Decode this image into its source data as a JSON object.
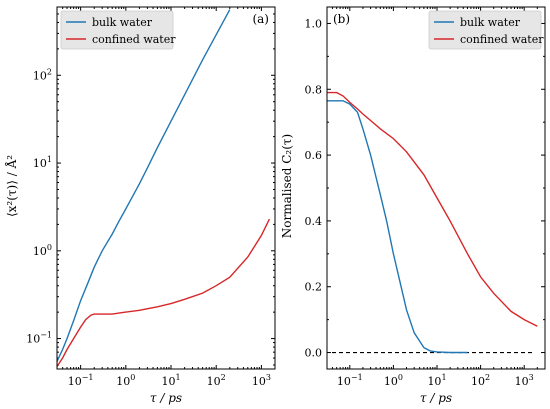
{
  "chart_data": [
    {
      "type": "line",
      "panel_label": "(a)",
      "xlabel": "τ / ps",
      "ylabel": "⟨x²(τ)⟩ / Å²",
      "xscale": "log",
      "yscale": "log",
      "xlim": [
        0.03,
        2000
      ],
      "ylim": [
        0.045,
        600
      ],
      "x_ticks": [
        {
          "value": 0.1,
          "base": "10",
          "exp": "−1"
        },
        {
          "value": 1,
          "base": "10",
          "exp": "0"
        },
        {
          "value": 10,
          "base": "10",
          "exp": "1"
        },
        {
          "value": 100,
          "base": "10",
          "exp": "2"
        },
        {
          "value": 1000,
          "base": "10",
          "exp": "3"
        }
      ],
      "y_ticks": [
        {
          "value": 0.1,
          "base": "10",
          "exp": "−1"
        },
        {
          "value": 1,
          "base": "10",
          "exp": "0"
        },
        {
          "value": 10,
          "base": "10",
          "exp": "1"
        },
        {
          "value": 100,
          "base": "10",
          "exp": "2"
        }
      ],
      "legend_position": "top-left",
      "series": [
        {
          "name": "bulk water",
          "color": "#1f77b4",
          "x": [
            0.03,
            0.04,
            0.05,
            0.07,
            0.1,
            0.15,
            0.2,
            0.3,
            0.5,
            0.7,
            1,
            2,
            3,
            5,
            10,
            20,
            50,
            100,
            200
          ],
          "y": [
            0.055,
            0.075,
            0.1,
            0.16,
            0.27,
            0.45,
            0.65,
            1.0,
            1.55,
            2.15,
            3.0,
            5.8,
            8.8,
            15,
            30,
            60,
            150,
            290,
            560
          ]
        },
        {
          "name": "confined water",
          "color": "#d62728",
          "x": [
            0.03,
            0.04,
            0.05,
            0.07,
            0.1,
            0.13,
            0.17,
            0.2,
            0.3,
            0.5,
            1,
            2,
            5,
            10,
            20,
            50,
            100,
            200,
            500,
            1000,
            1500
          ],
          "y": [
            0.048,
            0.06,
            0.075,
            0.1,
            0.135,
            0.165,
            0.185,
            0.19,
            0.19,
            0.19,
            0.2,
            0.21,
            0.23,
            0.25,
            0.28,
            0.33,
            0.4,
            0.5,
            0.85,
            1.5,
            2.3
          ]
        }
      ]
    },
    {
      "type": "line",
      "panel_label": "(b)",
      "xlabel": "τ / ps",
      "ylabel": "Normalised C₂(τ)",
      "xscale": "log",
      "xlim": [
        0.03,
        3000
      ],
      "ylim": [
        -0.05,
        1.05
      ],
      "x_ticks": [
        {
          "value": 0.1,
          "base": "10",
          "exp": "−1"
        },
        {
          "value": 1,
          "base": "10",
          "exp": "0"
        },
        {
          "value": 10,
          "base": "10",
          "exp": "1"
        },
        {
          "value": 100,
          "base": "10",
          "exp": "2"
        },
        {
          "value": 1000,
          "base": "10",
          "exp": "3"
        }
      ],
      "y_ticks": [
        {
          "value": 0.0,
          "label": "0.0"
        },
        {
          "value": 0.2,
          "label": "0.2"
        },
        {
          "value": 0.4,
          "label": "0.4"
        },
        {
          "value": 0.6,
          "label": "0.6"
        },
        {
          "value": 0.8,
          "label": "0.8"
        },
        {
          "value": 1.0,
          "label": "1.0"
        }
      ],
      "reference_line": {
        "y": 0.0,
        "style": "dashed",
        "color": "#000000"
      },
      "legend_position": "top-right",
      "series": [
        {
          "name": "bulk water",
          "color": "#1f77b4",
          "x": [
            0.03,
            0.05,
            0.07,
            0.1,
            0.15,
            0.2,
            0.3,
            0.5,
            0.7,
            1,
            1.5,
            2,
            3,
            5,
            7,
            10,
            20,
            50
          ],
          "y": [
            0.765,
            0.765,
            0.765,
            0.755,
            0.73,
            0.68,
            0.6,
            0.48,
            0.4,
            0.3,
            0.2,
            0.13,
            0.06,
            0.015,
            0.005,
            0.002,
            0.0,
            0.0
          ]
        },
        {
          "name": "confined water",
          "color": "#d62728",
          "x": [
            0.03,
            0.05,
            0.07,
            0.1,
            0.15,
            0.2,
            0.3,
            0.5,
            1,
            2,
            5,
            10,
            20,
            50,
            100,
            200,
            500,
            1000,
            2000
          ],
          "y": [
            0.79,
            0.79,
            0.78,
            0.76,
            0.74,
            0.725,
            0.705,
            0.68,
            0.65,
            0.61,
            0.54,
            0.47,
            0.4,
            0.3,
            0.23,
            0.18,
            0.125,
            0.1,
            0.08
          ]
        }
      ]
    }
  ]
}
